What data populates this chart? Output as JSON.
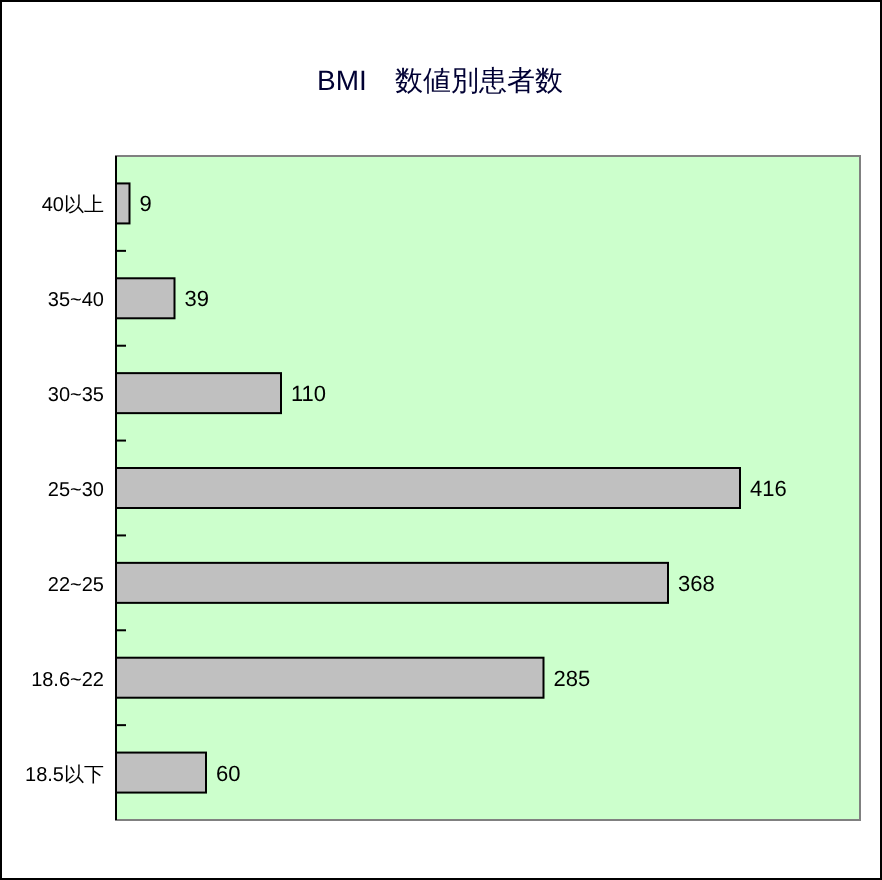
{
  "chart_data": {
    "type": "bar",
    "orientation": "horizontal",
    "title": "BMI　数値別患者数",
    "categories": [
      "40以上",
      "35~40",
      "30~35",
      "25~30",
      "22~25",
      "18.6~22",
      "18.5以下"
    ],
    "values": [
      9,
      39,
      110,
      416,
      368,
      285,
      60
    ],
    "color": "#c0c0c0",
    "data_labels": true
  }
}
